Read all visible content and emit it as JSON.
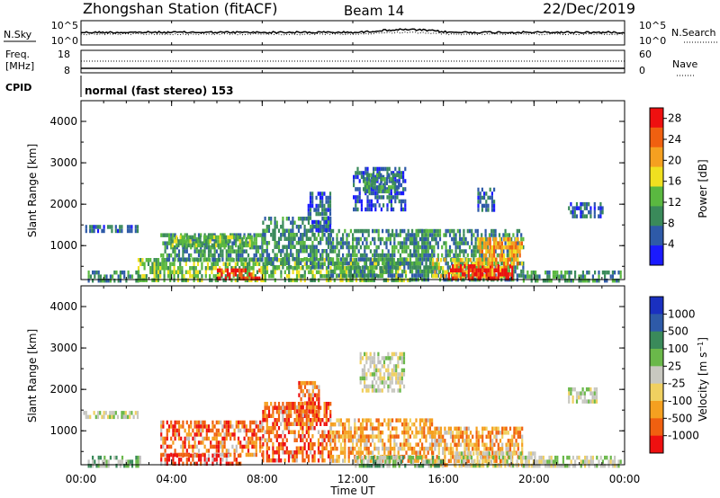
{
  "header": {
    "title": "Zhongshan Station (fitACF)",
    "beam": "Beam 14",
    "date": "22/Dec/2019"
  },
  "panels": {
    "noise": {
      "left_label": "N.Sky",
      "right_label": "N.Search",
      "left_ticks": [
        "10^5",
        "10^0"
      ],
      "right_ticks": [
        "10^5",
        "10^0"
      ]
    },
    "freq": {
      "left_label_1": "Freq.",
      "left_label_2": "[MHz]",
      "right_label": "Nave",
      "left_ticks": [
        "18",
        "8"
      ],
      "right_ticks": [
        "60",
        "0"
      ]
    },
    "cpid": {
      "label": "CPID",
      "text": "normal (fast stereo) 153"
    }
  },
  "colors": {
    "power": [
      "#1a1aff",
      "#2e5aa8",
      "#3a8a5a",
      "#5ab840",
      "#f0e020",
      "#f5a020",
      "#f06010",
      "#ee1010"
    ],
    "velocity": [
      "#ee1010",
      "#f06010",
      "#f5a020",
      "#f0d060",
      "#c8c8c0",
      "#6ab84a",
      "#3a8a5a",
      "#2e5aa8",
      "#1a30c0"
    ],
    "ground_scatter": "#bfbfbf"
  },
  "chart_data": [
    {
      "type": "heatmap",
      "title": "",
      "xlabel": "",
      "ylabel": "Slant Range [km]",
      "x_ticks": [
        "00:00",
        "04:00",
        "08:00",
        "12:00",
        "16:00",
        "20:00",
        "00:00"
      ],
      "y_ticks": [
        "1000",
        "2000",
        "3000",
        "4000"
      ],
      "ylim": [
        180,
        4500
      ],
      "xlim_hours": [
        0,
        24
      ],
      "colorbar": {
        "label": "Power [dB]",
        "ticks": [
          "4",
          "8",
          "12",
          "16",
          "20",
          "24",
          "28"
        ],
        "range": [
          0,
          30
        ]
      },
      "regions": [
        {
          "t0": 0.1,
          "t1": 2.5,
          "r0": 1380,
          "r1": 1500,
          "level": 1
        },
        {
          "t0": 0.3,
          "t1": 2.6,
          "r0": 200,
          "r1": 400,
          "level": 2
        },
        {
          "t0": 2.5,
          "t1": 14.5,
          "r0": 200,
          "r1": 700,
          "level": 3
        },
        {
          "t0": 3.5,
          "t1": 8.0,
          "r0": 650,
          "r1": 1300,
          "level": 2
        },
        {
          "t0": 4.0,
          "t1": 7.5,
          "r0": 1000,
          "r1": 1250,
          "level": 3
        },
        {
          "t0": 6.0,
          "t1": 8.0,
          "r0": 200,
          "r1": 450,
          "level": 7
        },
        {
          "t0": 8.0,
          "t1": 11.0,
          "r0": 500,
          "r1": 1700,
          "level": 2
        },
        {
          "t0": 10.0,
          "t1": 11.0,
          "r0": 1400,
          "r1": 2300,
          "level": 1
        },
        {
          "t0": 12.0,
          "t1": 14.3,
          "r0": 1900,
          "r1": 2900,
          "level": 1
        },
        {
          "t0": 12.5,
          "t1": 14.0,
          "r0": 2300,
          "r1": 2750,
          "level": 2
        },
        {
          "t0": 11.0,
          "t1": 15.5,
          "r0": 300,
          "r1": 1400,
          "level": 2
        },
        {
          "t0": 14.5,
          "t1": 19.5,
          "r0": 200,
          "r1": 1400,
          "level": 2
        },
        {
          "t0": 15.5,
          "t1": 18.8,
          "r0": 250,
          "r1": 700,
          "level": 4
        },
        {
          "t0": 16.2,
          "t1": 19.0,
          "r0": 200,
          "r1": 550,
          "level": 7
        },
        {
          "t0": 17.5,
          "t1": 19.5,
          "r0": 600,
          "r1": 1200,
          "level": 5
        },
        {
          "t0": 19.5,
          "t1": 23.8,
          "r0": 200,
          "r1": 400,
          "level": 2
        },
        {
          "t0": 21.5,
          "t1": 23.0,
          "r0": 1750,
          "r1": 2050,
          "level": 1
        },
        {
          "t0": 17.5,
          "t1": 18.2,
          "r0": 1900,
          "r1": 2400,
          "level": 1
        }
      ]
    },
    {
      "type": "heatmap",
      "title": "",
      "xlabel": "Time UT",
      "ylabel": "Slant Range [km]",
      "x_ticks": [
        "00:00",
        "04:00",
        "08:00",
        "12:00",
        "16:00",
        "20:00",
        "00:00"
      ],
      "y_ticks": [
        "1000",
        "2000",
        "3000",
        "4000"
      ],
      "ylim": [
        180,
        4500
      ],
      "xlim_hours": [
        0,
        24
      ],
      "colorbar": {
        "label": "Velocity [m s^-1]",
        "ticks": [
          "1000",
          "500",
          "100",
          "25",
          "-25",
          "-100",
          "-500",
          "-1000"
        ]
      },
      "regions": [
        {
          "t0": 0.1,
          "t1": 2.5,
          "r0": 1380,
          "r1": 1480,
          "level": 4
        },
        {
          "t0": 0.3,
          "t1": 2.6,
          "r0": 200,
          "r1": 400,
          "level": 5
        },
        {
          "t0": 3.5,
          "t1": 8.0,
          "r0": 400,
          "r1": 1250,
          "level": 1
        },
        {
          "t0": 3.5,
          "t1": 7.0,
          "r0": 200,
          "r1": 450,
          "level": 0
        },
        {
          "t0": 8.0,
          "t1": 11.0,
          "r0": 300,
          "r1": 1700,
          "level": 1
        },
        {
          "t0": 9.5,
          "t1": 10.5,
          "r0": 1400,
          "r1": 2200,
          "level": 1
        },
        {
          "t0": 12.3,
          "t1": 14.3,
          "r0": 2000,
          "r1": 2900,
          "level": 4
        },
        {
          "t0": 11.0,
          "t1": 15.5,
          "r0": 250,
          "r1": 1300,
          "level": 2
        },
        {
          "t0": 15.5,
          "t1": 19.5,
          "r0": 200,
          "r1": 1100,
          "level": 2
        },
        {
          "t0": 16.5,
          "t1": 20.0,
          "r0": 200,
          "r1": 500,
          "level": 4
        },
        {
          "t0": 12.0,
          "t1": 16.0,
          "r0": 200,
          "r1": 400,
          "level": 5
        },
        {
          "t0": 19.5,
          "t1": 23.8,
          "r0": 200,
          "r1": 400,
          "level": 4
        },
        {
          "t0": 21.5,
          "t1": 22.8,
          "r0": 1750,
          "r1": 2050,
          "level": 4
        }
      ]
    }
  ]
}
